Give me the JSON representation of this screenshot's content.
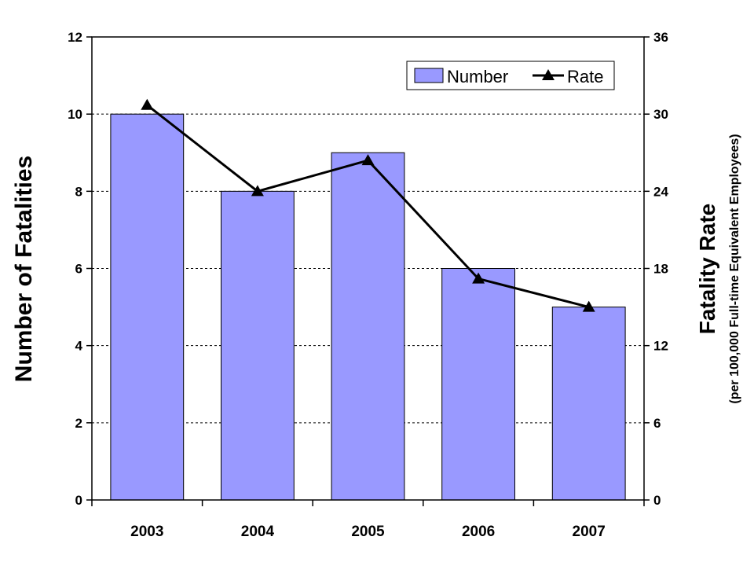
{
  "chart_data": {
    "type": "bar",
    "categories": [
      "2003",
      "2004",
      "2005",
      "2006",
      "2007"
    ],
    "series": [
      {
        "name": "Number",
        "type": "bar",
        "axis": "left",
        "values": [
          10,
          8,
          9,
          6,
          5
        ]
      },
      {
        "name": "Rate",
        "type": "line",
        "axis": "right",
        "values": [
          30.7,
          24.0,
          26.4,
          17.2,
          15.0
        ]
      }
    ],
    "ylabel": "Number of Fatalities",
    "y2label": "Fatality Rate",
    "y2sublabel": "(per 100,000 Full-time Equivalent Employees)",
    "ylim": [
      0,
      12
    ],
    "y2lim": [
      0,
      36
    ],
    "yticks": [
      "0",
      "2",
      "4",
      "6",
      "8",
      "10",
      "12"
    ],
    "y2ticks": [
      "0",
      "6",
      "12",
      "18",
      "24",
      "30",
      "36"
    ],
    "grid": "horizontal dashed",
    "legend": "top-right",
    "colors": {
      "bar": "#9999ff",
      "line": "#000000"
    }
  }
}
